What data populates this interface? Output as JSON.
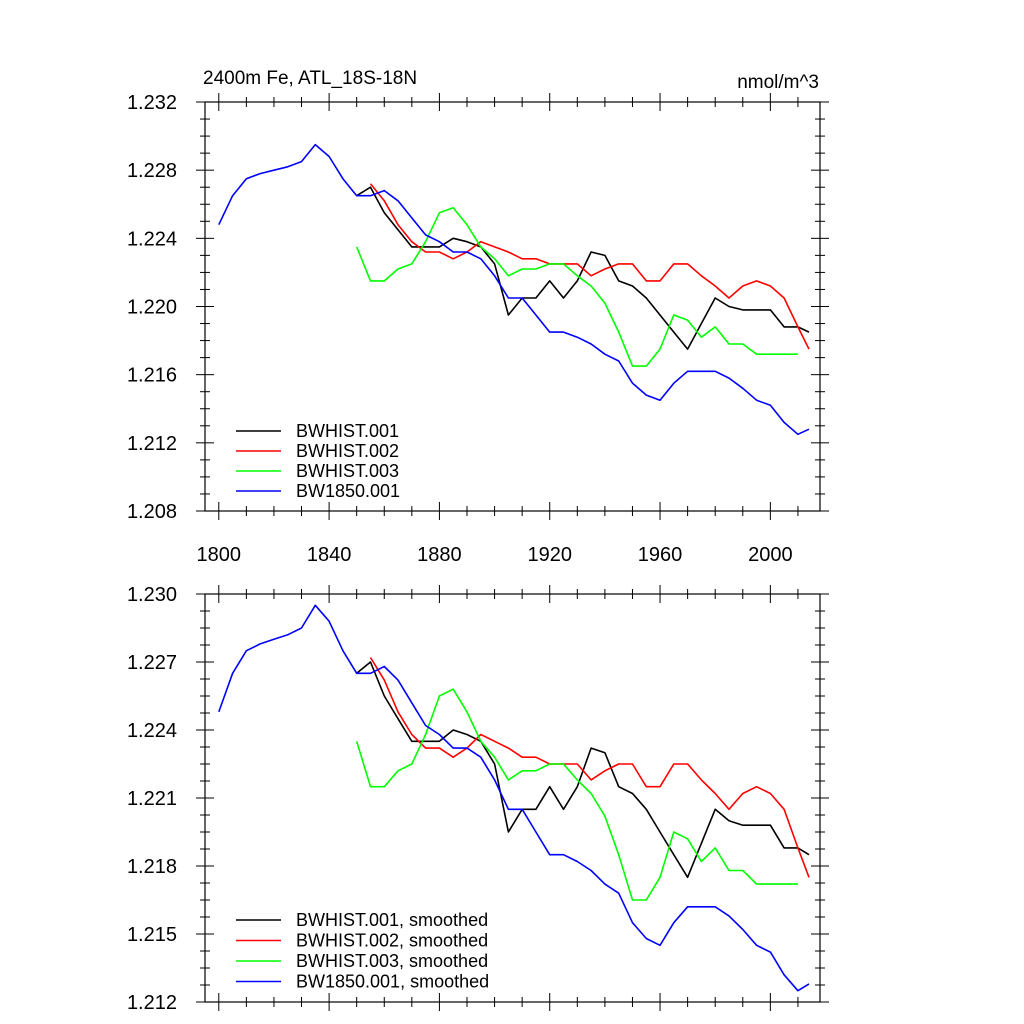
{
  "chart_data": [
    {
      "type": "line",
      "title": "2400m Fe, ATL_18S-18N",
      "units_label": "nmol/m^3",
      "xlabel": "",
      "ylabel": "",
      "xlim": [
        1795,
        2018
      ],
      "ylim": [
        1.208,
        1.232
      ],
      "xticks": [
        1800,
        1840,
        1880,
        1920,
        1960,
        2000
      ],
      "xtick_labels": [
        "1800",
        "1840",
        "1880",
        "1920",
        "1960",
        "2000"
      ],
      "yticks": [
        1.208,
        1.212,
        1.216,
        1.22,
        1.224,
        1.228,
        1.232
      ],
      "ytick_labels": [
        "1.208",
        "1.212",
        "1.216",
        "1.220",
        "1.224",
        "1.228",
        "1.232"
      ],
      "legend_position": "bottom-left",
      "series": [
        {
          "name": "BWHIST.001",
          "color": "#000000",
          "x": [
            1850,
            1855,
            1860,
            1865,
            1870,
            1875,
            1880,
            1885,
            1890,
            1895,
            1900,
            1905,
            1910,
            1915,
            1920,
            1925,
            1930,
            1935,
            1940,
            1945,
            1950,
            1955,
            1960,
            1965,
            1970,
            1975,
            1980,
            1985,
            1990,
            1995,
            2000,
            2005,
            2010,
            2014
          ],
          "y": [
            1.2265,
            1.227,
            1.2255,
            1.2245,
            1.2235,
            1.2235,
            1.2235,
            1.224,
            1.2238,
            1.2235,
            1.2225,
            1.2195,
            1.2205,
            1.2205,
            1.2215,
            1.2205,
            1.2215,
            1.2232,
            1.223,
            1.2215,
            1.2212,
            1.2205,
            1.2195,
            1.2185,
            1.2175,
            1.219,
            1.2205,
            1.22,
            1.2198,
            1.2198,
            1.2198,
            1.2188,
            1.2188,
            1.2185
          ]
        },
        {
          "name": "BWHIST.002",
          "color": "#ff0000",
          "x": [
            1855,
            1860,
            1865,
            1870,
            1875,
            1880,
            1885,
            1890,
            1895,
            1900,
            1905,
            1910,
            1915,
            1920,
            1925,
            1930,
            1935,
            1940,
            1945,
            1950,
            1955,
            1960,
            1965,
            1970,
            1975,
            1980,
            1985,
            1990,
            1995,
            2000,
            2005,
            2010,
            2014
          ],
          "y": [
            1.2272,
            1.2262,
            1.2248,
            1.2238,
            1.2232,
            1.2232,
            1.2228,
            1.2232,
            1.2238,
            1.2235,
            1.2232,
            1.2228,
            1.2228,
            1.2225,
            1.2225,
            1.2225,
            1.2218,
            1.2222,
            1.2225,
            1.2225,
            1.2215,
            1.2215,
            1.2225,
            1.2225,
            1.2218,
            1.2212,
            1.2205,
            1.2212,
            1.2215,
            1.2212,
            1.2205,
            1.2188,
            1.2175
          ]
        },
        {
          "name": "BWHIST.003",
          "color": "#00ff00",
          "x": [
            1850,
            1855,
            1860,
            1865,
            1870,
            1875,
            1880,
            1885,
            1890,
            1895,
            1900,
            1905,
            1910,
            1915,
            1920,
            1925,
            1930,
            1935,
            1940,
            1945,
            1950,
            1955,
            1960,
            1965,
            1970,
            1975,
            1980,
            1985,
            1990,
            1995,
            2000,
            2005,
            2010
          ],
          "y": [
            1.2235,
            1.2215,
            1.2215,
            1.2222,
            1.2225,
            1.2238,
            1.2255,
            1.2258,
            1.2248,
            1.2235,
            1.2228,
            1.2218,
            1.2222,
            1.2222,
            1.2225,
            1.2225,
            1.2218,
            1.2212,
            1.2202,
            1.2185,
            1.2165,
            1.2165,
            1.2175,
            1.2195,
            1.2192,
            1.2182,
            1.2188,
            1.2178,
            1.2178,
            1.2172,
            1.2172,
            1.2172,
            1.2172
          ]
        },
        {
          "name": "BW1850.001",
          "color": "#0000ff",
          "x": [
            1800,
            1805,
            1810,
            1815,
            1820,
            1825,
            1830,
            1835,
            1840,
            1845,
            1850,
            1855,
            1860,
            1865,
            1870,
            1875,
            1880,
            1885,
            1890,
            1895,
            1900,
            1905,
            1910,
            1915,
            1920,
            1925,
            1930,
            1935,
            1940,
            1945,
            1950,
            1955,
            1960,
            1965,
            1970,
            1975,
            1980,
            1985,
            1990,
            1995,
            2000,
            2005,
            2010,
            2014
          ],
          "y": [
            1.2248,
            1.2265,
            1.2275,
            1.2278,
            1.228,
            1.2282,
            1.2285,
            1.2295,
            1.2288,
            1.2275,
            1.2265,
            1.2265,
            1.2268,
            1.2262,
            1.2252,
            1.2242,
            1.2238,
            1.2232,
            1.2232,
            1.2228,
            1.2218,
            1.2205,
            1.2205,
            1.2195,
            1.2185,
            1.2185,
            1.2182,
            1.2178,
            1.2172,
            1.2168,
            1.2155,
            1.2148,
            1.2145,
            1.2155,
            1.2162,
            1.2162,
            1.2162,
            1.2158,
            1.2152,
            1.2145,
            1.2142,
            1.2132,
            1.2125,
            1.2128
          ]
        }
      ]
    },
    {
      "type": "line",
      "title": "",
      "xlabel": "",
      "ylabel": "",
      "xlim": [
        1795,
        2018
      ],
      "ylim": [
        1.212,
        1.23
      ],
      "xticks": [
        1800,
        1840,
        1880,
        1920,
        1960,
        2000
      ],
      "yticks": [
        1.212,
        1.215,
        1.218,
        1.221,
        1.224,
        1.227,
        1.23
      ],
      "ytick_labels": [
        "1.212",
        "1.215",
        "1.218",
        "1.221",
        "1.224",
        "1.227",
        "1.230"
      ],
      "legend_position": "bottom-left",
      "series": [
        {
          "name": "BWHIST.001, smoothed",
          "color": "#000000",
          "x": [
            1850,
            1855,
            1860,
            1865,
            1870,
            1875,
            1880,
            1885,
            1890,
            1895,
            1900,
            1905,
            1910,
            1915,
            1920,
            1925,
            1930,
            1935,
            1940,
            1945,
            1950,
            1955,
            1960,
            1965,
            1970,
            1975,
            1980,
            1985,
            1990,
            1995,
            2000,
            2005,
            2010,
            2014
          ],
          "y": [
            1.2265,
            1.227,
            1.2255,
            1.2245,
            1.2235,
            1.2235,
            1.2235,
            1.224,
            1.2238,
            1.2235,
            1.2225,
            1.2195,
            1.2205,
            1.2205,
            1.2215,
            1.2205,
            1.2215,
            1.2232,
            1.223,
            1.2215,
            1.2212,
            1.2205,
            1.2195,
            1.2185,
            1.2175,
            1.219,
            1.2205,
            1.22,
            1.2198,
            1.2198,
            1.2198,
            1.2188,
            1.2188,
            1.2185
          ]
        },
        {
          "name": "BWHIST.002, smoothed",
          "color": "#ff0000",
          "x": [
            1855,
            1860,
            1865,
            1870,
            1875,
            1880,
            1885,
            1890,
            1895,
            1900,
            1905,
            1910,
            1915,
            1920,
            1925,
            1930,
            1935,
            1940,
            1945,
            1950,
            1955,
            1960,
            1965,
            1970,
            1975,
            1980,
            1985,
            1990,
            1995,
            2000,
            2005,
            2010,
            2014
          ],
          "y": [
            1.2272,
            1.2262,
            1.2248,
            1.2238,
            1.2232,
            1.2232,
            1.2228,
            1.2232,
            1.2238,
            1.2235,
            1.2232,
            1.2228,
            1.2228,
            1.2225,
            1.2225,
            1.2225,
            1.2218,
            1.2222,
            1.2225,
            1.2225,
            1.2215,
            1.2215,
            1.2225,
            1.2225,
            1.2218,
            1.2212,
            1.2205,
            1.2212,
            1.2215,
            1.2212,
            1.2205,
            1.2188,
            1.2175
          ]
        },
        {
          "name": "BWHIST.003, smoothed",
          "color": "#00ff00",
          "x": [
            1850,
            1855,
            1860,
            1865,
            1870,
            1875,
            1880,
            1885,
            1890,
            1895,
            1900,
            1905,
            1910,
            1915,
            1920,
            1925,
            1930,
            1935,
            1940,
            1945,
            1950,
            1955,
            1960,
            1965,
            1970,
            1975,
            1980,
            1985,
            1990,
            1995,
            2000,
            2005,
            2010
          ],
          "y": [
            1.2235,
            1.2215,
            1.2215,
            1.2222,
            1.2225,
            1.2238,
            1.2255,
            1.2258,
            1.2248,
            1.2235,
            1.2228,
            1.2218,
            1.2222,
            1.2222,
            1.2225,
            1.2225,
            1.2218,
            1.2212,
            1.2202,
            1.2185,
            1.2165,
            1.2165,
            1.2175,
            1.2195,
            1.2192,
            1.2182,
            1.2188,
            1.2178,
            1.2178,
            1.2172,
            1.2172,
            1.2172,
            1.2172
          ]
        },
        {
          "name": "BW1850.001, smoothed",
          "color": "#0000ff",
          "x": [
            1800,
            1805,
            1810,
            1815,
            1820,
            1825,
            1830,
            1835,
            1840,
            1845,
            1850,
            1855,
            1860,
            1865,
            1870,
            1875,
            1880,
            1885,
            1890,
            1895,
            1900,
            1905,
            1910,
            1915,
            1920,
            1925,
            1930,
            1935,
            1940,
            1945,
            1950,
            1955,
            1960,
            1965,
            1970,
            1975,
            1980,
            1985,
            1990,
            1995,
            2000,
            2005,
            2010,
            2014
          ],
          "y": [
            1.2248,
            1.2265,
            1.2275,
            1.2278,
            1.228,
            1.2282,
            1.2285,
            1.2295,
            1.2288,
            1.2275,
            1.2265,
            1.2265,
            1.2268,
            1.2262,
            1.2252,
            1.2242,
            1.2238,
            1.2232,
            1.2232,
            1.2228,
            1.2218,
            1.2205,
            1.2205,
            1.2195,
            1.2185,
            1.2185,
            1.2182,
            1.2178,
            1.2172,
            1.2168,
            1.2155,
            1.2148,
            1.2145,
            1.2155,
            1.2162,
            1.2162,
            1.2162,
            1.2158,
            1.2152,
            1.2145,
            1.2142,
            1.2132,
            1.2125,
            1.2128
          ]
        }
      ]
    }
  ]
}
